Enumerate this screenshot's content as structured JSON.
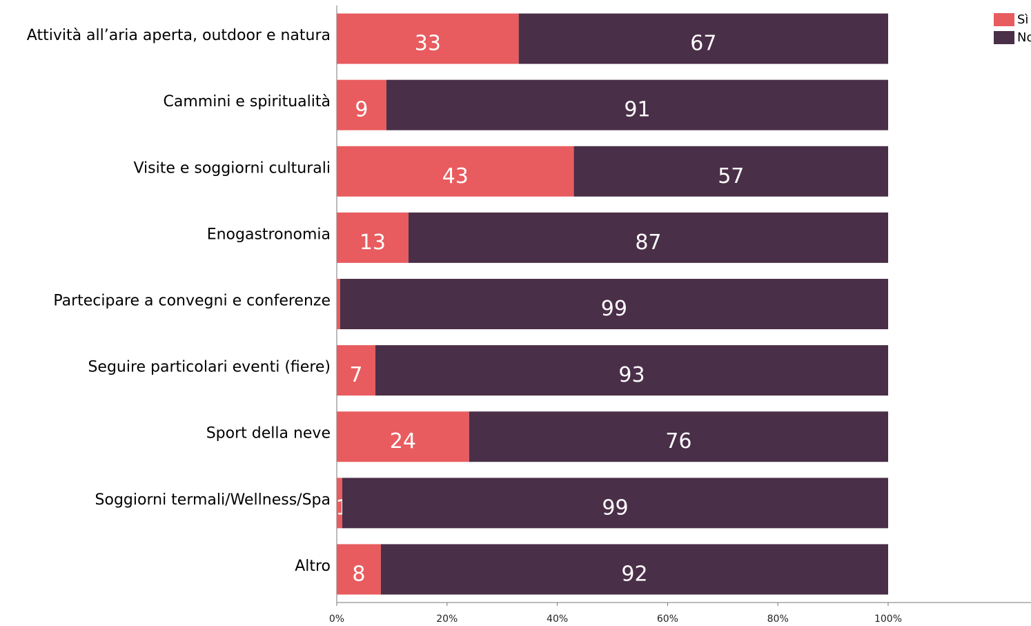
{
  "chart_data": {
    "type": "stacked-bar-horizontal",
    "categories": [
      "Attività all’aria aperta, outdoor e natura",
      "Cammini e spiritualità",
      "Visite e soggiorni culturali",
      "Enogastronomia",
      "Partecipare a convegni e conferenze",
      "Seguire particolari eventi (fiere)",
      "Sport della neve",
      "Soggiorni termali/Wellness/Spa",
      "Altro"
    ],
    "series": [
      {
        "name": "Sì",
        "color": "#e85c5f",
        "values": [
          33,
          9,
          43,
          13,
          0.6,
          7,
          24,
          1,
          8
        ],
        "value_labels": [
          "33",
          "9",
          "43",
          "13",
          null,
          "7",
          "24",
          "1",
          "8"
        ]
      },
      {
        "name": "No",
        "color": "#4a2f48",
        "values": [
          67,
          91,
          57,
          87,
          99.4,
          93,
          76,
          99,
          92
        ],
        "value_labels": [
          "67",
          "91",
          "57",
          "87",
          "99",
          "93",
          "76",
          "99",
          "92"
        ]
      }
    ],
    "xlim": [
      0,
      126
    ],
    "xticks": [
      {
        "value": 0,
        "label": "0%"
      },
      {
        "value": 20,
        "label": "20%"
      },
      {
        "value": 40,
        "label": "40%"
      },
      {
        "value": 60,
        "label": "60%"
      },
      {
        "value": 80,
        "label": "80%"
      },
      {
        "value": 100,
        "label": "100%"
      }
    ],
    "legend": "top-right"
  }
}
